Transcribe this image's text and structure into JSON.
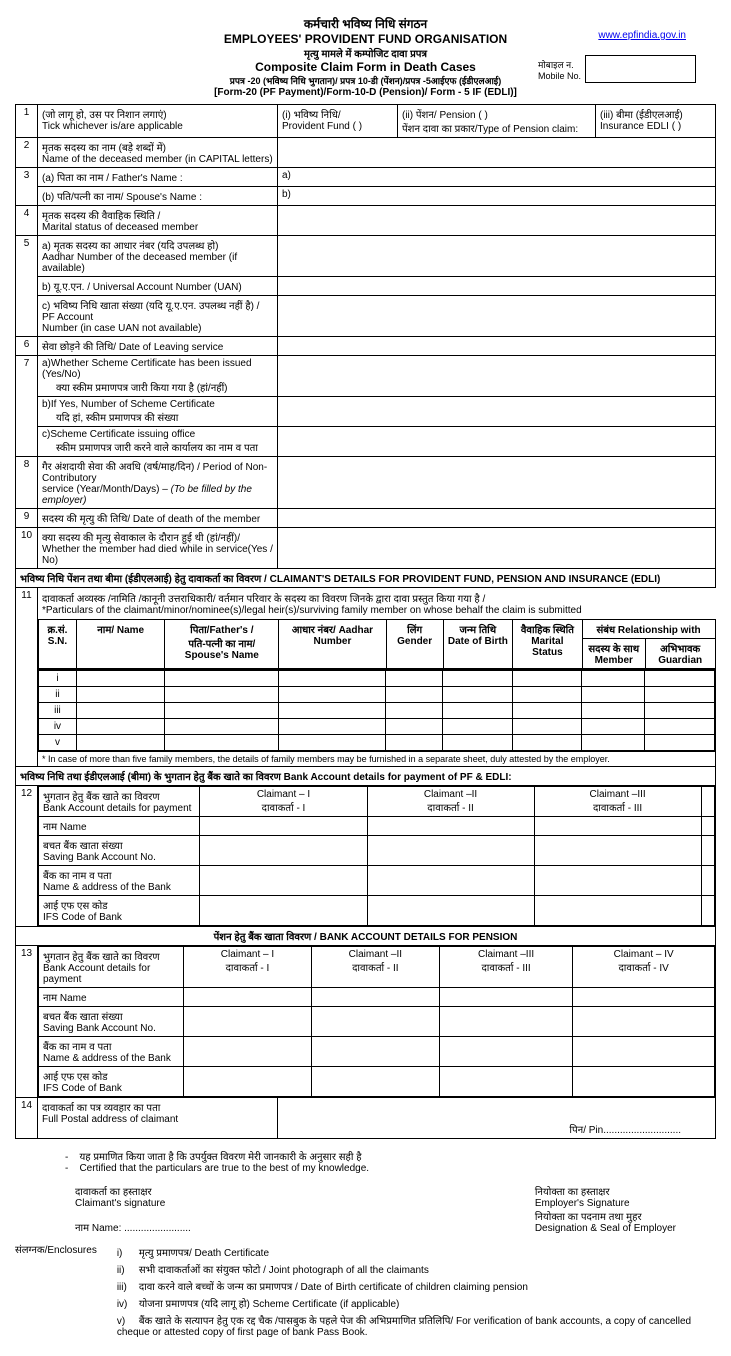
{
  "link": {
    "text": "www.epfindia.gov.in"
  },
  "mobile": {
    "hi": "मोबाइल न.",
    "en": "Mobile No."
  },
  "titles": {
    "l1": "कर्मचारी भविष्य निधि संगठन",
    "l2": "EMPLOYEES' PROVIDENT FUND ORGANISATION",
    "l3": "मृत्यु मामले में कम्पोजिट दावा प्रपत्र",
    "l4": "Composite Claim Form in Death Cases",
    "l5": "प्रपत्र -20 (भविष्य निधि भुगतान)/ प्रपत्र 10-डी (पेंशन)/प्रपत्र -5आईएफ (ईडीएलआई)",
    "l6": "[Form-20 (PF Payment)/Form-10-D (Pension)/ Form - 5 IF (EDLI)]"
  },
  "rows": {
    "r1": {
      "a_hi": "(जो लागू हो, उस पर निशान लगाएं)",
      "a_en": "Tick whichever is/are applicable",
      "b_hi": "(i)   भविष्य निधि/",
      "b_en": "Provident Fund  (    )",
      "c_hi": "(ii)  पेंशन/ Pension    (       )",
      "c_en": "पेंशन दावा का प्रकार/Type of Pension claim:",
      "d_hi": "(iii) बीमा (ईडीएलआई)",
      "d_en": "Insurance EDLI  (  )"
    },
    "r2": {
      "hi": "मृतक  सदस्य का नाम (बड़े शब्दों में)",
      "en": "Name of the  deceased member (in CAPITAL letters)"
    },
    "r3": {
      "a": "(a) पिता का नाम / Father's Name    :",
      "b": "(b) पति/पत्नी का नाम/ Spouse's Name :",
      "ra": "a)",
      "rb": "b)"
    },
    "r4": {
      "hi": "मृतक सदस्य की वैवाहिक स्थिति /",
      "en": "Marital status of deceased member"
    },
    "r5": {
      "a_hi": "a)   मृतक  सदस्य का आधार नंबर (यदि उपलब्ध हो)",
      "a_en": "Aadhar Number of the deceased member (if available)",
      "b": "b) यू.ए.एन. / Universal Account Number (UAN)",
      "c_hi": "c) भविष्य निधि खाता संख्या (यदि यू.ए.एन. उपलब्ध नहीं है) / PF Account",
      "c_en": "Number (in case UAN not available)"
    },
    "r6": {
      "txt": "सेवा छोड़ने की तिथि/ Date of Leaving service"
    },
    "r7": {
      "a": "a)Whether Scheme Certificate has been issued (Yes/No)",
      "a2": "क्या स्कीम प्रमाणपत्र जारी किया गया है      (हां/नहीं)",
      "b": "b)If Yes, Number of Scheme Certificate",
      "b2": "यदि हां, स्कीम प्रमाणपत्र की संख्या",
      "c": "c)Scheme Certificate issuing office",
      "c2": "स्कीम प्रमाणपत्र जारी करने वाले कार्यालय का नाम व पता"
    },
    "r8": {
      "hi": "गैर अंशदायी सेवा की अवधि (वर्ष/माह/दिन) / Period of Non-Contributory",
      "en": "service (Year/Month/Days) – ",
      "em": "(To be filled by the employer)"
    },
    "r9": {
      "txt": "सदस्य की मृत्यु की तिथि/ Date of death of the member"
    },
    "r10": {
      "hi": "क्या सदस्य की मृत्यु सेवाकाल के दौरान हुई थी (हां/नहीं)/",
      "en": "Whether the member had died while in service(Yes / No)"
    }
  },
  "section11": {
    "header": "भविष्य निधि पेंशन तथा बीमा (ईडीएलआई) हेतु दावाकर्ता का विवरण / CLAIMANT'S DETAILS FOR PROVIDENT FUND, PENSION AND INSURANCE (EDLI)",
    "sub1": "दावाकर्ता अव्यस्क /नामिति /कानूनी उत्तराधिकारी/ वर्तमान परिवार के सदस्य का विवरण जिनके द्वारा दावा प्रस्तुत किया गया है /",
    "sub2": "*Particulars of the claimant/minor/nominee(s)/legal heir(s)/surviving family member on whose behalf the claim is submitted",
    "cols": {
      "sn": "क्र.सं. S.N.",
      "name": "नाम/ Name",
      "father_hi": "पिता/Father's /",
      "father_hi2": "पति-पत्नी का नाम/",
      "father_en": "Spouse's Name",
      "aadhar": "आधार नंबर/ Aadhar Number",
      "gender": "लिंग Gender",
      "dob": "जन्म तिथि Date of Birth",
      "marital": "वैवाहिक स्थिति Marital Status",
      "rel": "संबंध Relationship with",
      "member": "सदस्य के साथ Member",
      "guardian": "अभिभावक Guardian"
    },
    "roman": [
      "i",
      "ii",
      "iii",
      "iv",
      "v"
    ],
    "note": "* In case of more than five family members, the details of family members may be furnished in a separate sheet, duly attested by the employer."
  },
  "section12": {
    "header": "भविष्य निधि तथा ईडीएलआई (बीमा) के भुगतान हेतु बैंक खाते का विवरण Bank Account details for payment of PF & EDLI:",
    "rows": [
      {
        "hi": "भुगतान हेतु बैंक खाते का विवरण",
        "en": "Bank Account details for payment"
      },
      {
        "hi": "नाम Name",
        "en": ""
      },
      {
        "hi": "बचत बैंक खाता संख्या",
        "en": "Saving Bank Account No."
      },
      {
        "hi": "बैंक का नाम व पता",
        "en": "Name & address of the Bank"
      },
      {
        "hi": "आई एफ एस कोड",
        "en": "IFS Code of Bank"
      }
    ],
    "claimants": [
      "Claimant – I",
      "Claimant –II",
      "Claimant –III"
    ],
    "claimants_hi": [
      "दावाकर्ता - I",
      "दावाकर्ता - II",
      "दावाकर्ता - III"
    ]
  },
  "section13": {
    "header": "पेंशन हेतु बैंक खाता विवरण / BANK ACCOUNT DETAILS FOR PENSION",
    "rows": [
      {
        "hi": "भुगतान हेतु बैंक खाते का विवरण",
        "en": "Bank Account details for payment"
      },
      {
        "hi": "नाम Name",
        "en": ""
      },
      {
        "hi": "बचत बैंक खाता संख्या",
        "en": "Saving Bank Account No."
      },
      {
        "hi": "बैंक का नाम व पता",
        "en": "Name & address of the Bank"
      },
      {
        "hi": "आई एफ एस कोड",
        "en": "IFS Code of Bank"
      }
    ],
    "claimants": [
      "Claimant – I",
      "Claimant –II",
      "Claimant –III",
      "Claimant – IV"
    ],
    "claimants_hi": [
      "दावाकर्ता - I",
      "दावाकर्ता - II",
      "दावाकर्ता - III",
      "दावाकर्ता - IV"
    ]
  },
  "r14": {
    "hi": "दावाकर्ता का पत्र व्यवहार का पता",
    "en": "Full Postal address of claimant",
    "pin": "पिन/ Pin............................"
  },
  "footer": {
    "cert_hi": "यह प्रमाणित किया जाता है कि उपर्युक्त विवरण मेरी जानकारी के अनुसार सही है",
    "cert_en": "Certified that the particulars are true to the best of my knowledge.",
    "claimant_sig_hi": "दावाकर्ता का हस्ताक्षर",
    "claimant_sig_en": "Claimant's signature",
    "emp_sig_hi": "नियोक्ता का हस्ताक्षर",
    "emp_sig_en": "Employer's Signature",
    "name": "नाम Name: ........................",
    "desig_hi": "नियोक्ता का पदनाम तथा मुहर",
    "desig_en": "Designation & Seal of Employer",
    "encl": "संलग्नक/Enclosures",
    "items": [
      "मृत्यु प्रमाणपत्र/ Death Certificate",
      "सभी दावाकर्ताओं का संयुक्त फोटो / Joint photograph of all the claimants",
      "दावा करने वाले बच्चों के जन्म का प्रमाणपत्र / Date of Birth certificate of children claiming pension",
      "योजना प्रमाणपत्र (यदि लागू हो) Scheme Certificate (if applicable)",
      "बैंक खाते के सत्यापन हेतु एक रद्द चैक /पासबुक के पहले पेज की अभिप्रमाणित प्रतिलिपि/ For verification of bank accounts, a copy of cancelled cheque or attested copy of first page of bank Pass Book."
    ],
    "roman": [
      "i)",
      "ii)",
      "iii)",
      "iv)",
      "v)"
    ]
  }
}
